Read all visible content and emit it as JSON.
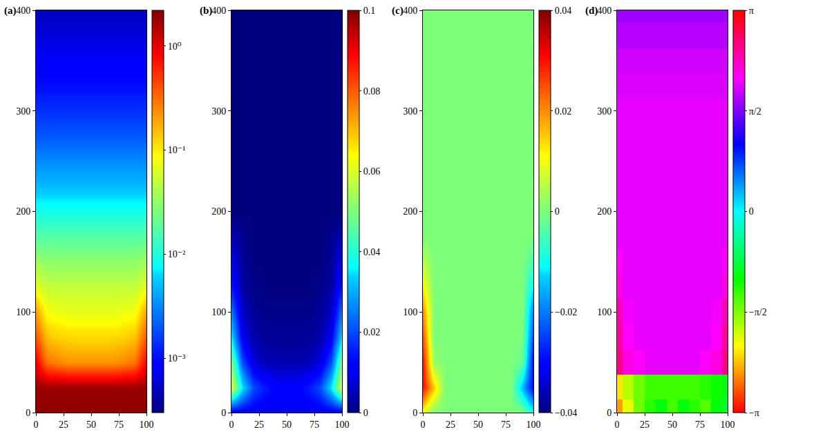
{
  "chart_data": [
    {
      "type": "heatmap",
      "title": "(a)",
      "color": "jet",
      "x": [
        0,
        10,
        20,
        30,
        40,
        50,
        60,
        70,
        80,
        90,
        100
      ],
      "y": [
        0,
        25,
        50,
        75,
        100,
        125,
        150,
        175,
        200,
        225,
        250,
        275,
        300,
        325,
        350,
        375,
        400
      ],
      "z": [
        [
          2.0,
          2.0,
          2.0,
          2.0,
          2.0,
          2.0,
          2.0,
          2.0,
          2.0,
          2.0,
          2.0
        ],
        [
          1.8,
          1.8,
          1.8,
          1.8,
          1.8,
          1.8,
          1.8,
          1.8,
          1.8,
          1.8,
          1.8
        ],
        [
          0.9,
          0.3,
          0.25,
          0.22,
          0.22,
          0.22,
          0.22,
          0.22,
          0.25,
          0.3,
          0.9
        ],
        [
          0.4,
          0.15,
          0.13,
          0.12,
          0.12,
          0.12,
          0.12,
          0.12,
          0.13,
          0.15,
          0.4
        ],
        [
          0.2,
          0.08,
          0.075,
          0.07,
          0.07,
          0.07,
          0.07,
          0.07,
          0.075,
          0.08,
          0.2
        ],
        [
          0.07,
          0.05,
          0.05,
          0.05,
          0.05,
          0.05,
          0.05,
          0.05,
          0.05,
          0.05,
          0.07
        ],
        [
          0.035,
          0.03,
          0.03,
          0.03,
          0.03,
          0.03,
          0.03,
          0.03,
          0.03,
          0.03,
          0.035
        ],
        [
          0.017,
          0.017,
          0.017,
          0.017,
          0.017,
          0.017,
          0.017,
          0.017,
          0.017,
          0.017,
          0.017
        ],
        [
          0.009,
          0.009,
          0.009,
          0.009,
          0.009,
          0.009,
          0.009,
          0.009,
          0.009,
          0.009,
          0.009
        ],
        [
          0.005,
          0.005,
          0.005,
          0.005,
          0.005,
          0.005,
          0.005,
          0.005,
          0.005,
          0.005,
          0.005
        ],
        [
          0.0032,
          0.0032,
          0.0032,
          0.0032,
          0.0032,
          0.0032,
          0.0032,
          0.0032,
          0.0032,
          0.0032,
          0.0032
        ],
        [
          0.002,
          0.002,
          0.002,
          0.002,
          0.002,
          0.002,
          0.002,
          0.002,
          0.002,
          0.002,
          0.002
        ],
        [
          0.0014,
          0.0014,
          0.0014,
          0.0014,
          0.0014,
          0.0014,
          0.0014,
          0.0014,
          0.0014,
          0.0014,
          0.0014
        ],
        [
          0.001,
          0.001,
          0.001,
          0.001,
          0.001,
          0.001,
          0.001,
          0.001,
          0.001,
          0.001,
          0.001
        ],
        [
          0.0008,
          0.0008,
          0.0008,
          0.0008,
          0.0008,
          0.0008,
          0.0008,
          0.0008,
          0.0008,
          0.0008,
          0.0008
        ],
        [
          0.0006,
          0.0006,
          0.0006,
          0.0006,
          0.0006,
          0.0006,
          0.0006,
          0.0006,
          0.0006,
          0.0006,
          0.0006
        ],
        [
          0.0005,
          0.0005,
          0.0005,
          0.0005,
          0.0005,
          0.0005,
          0.0005,
          0.0005,
          0.0005,
          0.0005,
          0.0005
        ]
      ],
      "xlim": [
        0,
        100
      ],
      "ylim": [
        0,
        400
      ],
      "xticks": [
        0,
        25,
        50,
        75,
        100
      ],
      "yticks": [
        0,
        100,
        200,
        300,
        400
      ],
      "colorbar": {
        "range": [
          0.0003,
          2.2
        ],
        "log": true,
        "ticks": [
          {
            "value": 1,
            "label": "10⁰"
          },
          {
            "value": 0.1,
            "label": "10⁻¹"
          },
          {
            "value": 0.01,
            "label": "10⁻²"
          },
          {
            "value": 0.001,
            "label": "10⁻³"
          }
        ]
      }
    },
    {
      "type": "heatmap",
      "title": "(b)",
      "color": "jet",
      "x": [
        0,
        10,
        20,
        30,
        40,
        50,
        60,
        70,
        80,
        90,
        100
      ],
      "y": [
        0,
        25,
        50,
        75,
        100,
        125,
        150,
        175,
        200,
        225,
        250,
        275,
        300,
        325,
        350,
        375,
        400
      ],
      "z": [
        [
          0.01,
          0.01,
          0.01,
          0.01,
          0.01,
          0.01,
          0.01,
          0.01,
          0.01,
          0.01,
          0.01
        ],
        [
          0.06,
          0.035,
          0.02,
          0.015,
          0.012,
          0.012,
          0.012,
          0.015,
          0.02,
          0.035,
          0.06
        ],
        [
          0.05,
          0.02,
          0.008,
          0.005,
          0.004,
          0.004,
          0.004,
          0.005,
          0.008,
          0.02,
          0.05
        ],
        [
          0.035,
          0.01,
          0.004,
          0.002,
          0.002,
          0.002,
          0.002,
          0.002,
          0.004,
          0.01,
          0.035
        ],
        [
          0.025,
          0.006,
          0.002,
          0.001,
          0.001,
          0.001,
          0.001,
          0.001,
          0.002,
          0.006,
          0.025
        ],
        [
          0.015,
          0.003,
          0.001,
          0,
          0,
          0,
          0,
          0,
          0.001,
          0.003,
          0.015
        ],
        [
          0.01,
          0.002,
          0,
          0,
          0,
          0,
          0,
          0,
          0,
          0.002,
          0.01
        ],
        [
          0.005,
          0.001,
          0,
          0,
          0,
          0,
          0,
          0,
          0,
          0.001,
          0.005
        ],
        [
          0,
          0,
          0,
          0,
          0,
          0,
          0,
          0,
          0,
          0,
          0
        ],
        [
          0,
          0,
          0,
          0,
          0,
          0,
          0,
          0,
          0,
          0,
          0
        ],
        [
          0,
          0,
          0,
          0,
          0,
          0,
          0,
          0,
          0,
          0,
          0
        ],
        [
          0,
          0,
          0,
          0,
          0,
          0,
          0,
          0,
          0,
          0,
          0
        ],
        [
          0,
          0,
          0,
          0,
          0,
          0,
          0,
          0,
          0,
          0,
          0
        ],
        [
          0,
          0,
          0,
          0,
          0,
          0,
          0,
          0,
          0,
          0,
          0
        ],
        [
          0,
          0,
          0,
          0,
          0,
          0,
          0,
          0,
          0,
          0,
          0
        ],
        [
          0,
          0,
          0,
          0,
          0,
          0,
          0,
          0,
          0,
          0,
          0
        ],
        [
          0,
          0,
          0,
          0,
          0,
          0,
          0,
          0,
          0,
          0,
          0
        ]
      ],
      "xlim": [
        0,
        100
      ],
      "ylim": [
        0,
        400
      ],
      "xticks": [
        0,
        25,
        50,
        75,
        100
      ],
      "yticks": [
        0,
        100,
        200,
        300,
        400
      ],
      "colorbar": {
        "range": [
          0,
          0.1
        ],
        "ticks": [
          0,
          0.02,
          0.04,
          0.06,
          0.08,
          0.1
        ]
      }
    },
    {
      "type": "heatmap",
      "title": "(c)",
      "color": "jet",
      "x": [
        0,
        10,
        20,
        30,
        40,
        50,
        60,
        70,
        80,
        90,
        100
      ],
      "y": [
        0,
        25,
        50,
        75,
        100,
        125,
        150,
        175,
        200,
        225,
        250,
        275,
        300,
        325,
        350,
        375,
        400
      ],
      "z": [
        [
          0.01,
          0,
          0,
          0,
          0,
          0,
          0,
          0,
          0,
          0,
          -0.01
        ],
        [
          0.03,
          0.015,
          0,
          0,
          0,
          0,
          0,
          0,
          0,
          -0.015,
          -0.03
        ],
        [
          0.03,
          0.002,
          0,
          0,
          0,
          0,
          0,
          0,
          0,
          -0.002,
          -0.03
        ],
        [
          0.025,
          0,
          0,
          0,
          0,
          0,
          0,
          0,
          0,
          0,
          -0.025
        ],
        [
          0.02,
          0,
          0,
          0,
          0,
          0,
          0,
          0,
          0,
          0,
          -0.02
        ],
        [
          0.012,
          0,
          0,
          0,
          0,
          0,
          0,
          0,
          0,
          0,
          -0.012
        ],
        [
          0.005,
          0,
          0,
          0,
          0,
          0,
          0,
          0,
          0,
          0,
          -0.005
        ],
        [
          0,
          0,
          0,
          0,
          0,
          0,
          0,
          0,
          0,
          0,
          0
        ],
        [
          0,
          0,
          0,
          0,
          0,
          0,
          0,
          0,
          0,
          0,
          0
        ],
        [
          0,
          0,
          0,
          0,
          0,
          0,
          0,
          0,
          0,
          0,
          0
        ],
        [
          0,
          0,
          0,
          0,
          0,
          0,
          0,
          0,
          0,
          0,
          0
        ],
        [
          0,
          0,
          0,
          0,
          0,
          0,
          0,
          0,
          0,
          0,
          0
        ],
        [
          0,
          0,
          0,
          0,
          0,
          0,
          0,
          0,
          0,
          0,
          0
        ],
        [
          0,
          0,
          0,
          0,
          0,
          0,
          0,
          0,
          0,
          0,
          0
        ],
        [
          0,
          0,
          0,
          0,
          0,
          0,
          0,
          0,
          0,
          0,
          0
        ],
        [
          0,
          0,
          0,
          0,
          0,
          0,
          0,
          0,
          0,
          0,
          0
        ],
        [
          0,
          0,
          0,
          0,
          0,
          0,
          0,
          0,
          0,
          0,
          0
        ]
      ],
      "xlim": [
        0,
        100
      ],
      "ylim": [
        0,
        400
      ],
      "xticks": [
        0,
        25,
        50,
        75,
        100
      ],
      "yticks": [
        0,
        100,
        200,
        300,
        400
      ],
      "colorbar": {
        "range": [
          -0.04,
          0.04
        ],
        "ticks": [
          -0.04,
          -0.02,
          0,
          0.02,
          0.04
        ]
      }
    },
    {
      "type": "heatmap",
      "title": "(d)",
      "color": "hsv",
      "x": [
        0,
        10,
        20,
        30,
        40,
        50,
        60,
        70,
        80,
        90,
        100
      ],
      "y": [
        0,
        25,
        50,
        75,
        100,
        125,
        150,
        175,
        200,
        225,
        250,
        275,
        300,
        325,
        350,
        375,
        400
      ],
      "z": [
        [
          -2.5,
          -2.0,
          -1.5,
          -1.2,
          -1.0,
          -1.3,
          -1.0,
          -1.2,
          -1.4,
          -1.0,
          -0.9
        ],
        [
          -2.2,
          -1.8,
          -1.5,
          -1.3,
          -1.3,
          -1.3,
          -1.3,
          -1.3,
          -1.2,
          -1.1,
          -1.0
        ],
        [
          2.6,
          2.2,
          2.1,
          2.0,
          2.0,
          2.0,
          2.0,
          2.0,
          2.1,
          2.2,
          2.6
        ],
        [
          2.5,
          2.1,
          2.0,
          2.0,
          2.0,
          2.0,
          2.0,
          2.0,
          2.0,
          2.1,
          2.5
        ],
        [
          2.4,
          2.05,
          2.0,
          2.0,
          2.0,
          2.0,
          2.0,
          2.0,
          2.0,
          2.05,
          2.4
        ],
        [
          2.2,
          2.0,
          2.0,
          2.0,
          2.0,
          2.0,
          2.0,
          2.0,
          2.0,
          2.0,
          2.2
        ],
        [
          2.1,
          2.0,
          2.0,
          2.0,
          2.0,
          2.0,
          2.0,
          2.0,
          2.0,
          2.0,
          2.1
        ],
        [
          2.0,
          2.0,
          2.0,
          2.0,
          2.0,
          2.0,
          2.0,
          2.0,
          2.0,
          2.0,
          2.0
        ],
        [
          2.0,
          2.0,
          2.0,
          2.0,
          2.0,
          2.0,
          2.0,
          2.0,
          2.0,
          2.0,
          2.0
        ],
        [
          2.0,
          2.0,
          2.0,
          2.0,
          2.0,
          2.0,
          2.0,
          2.0,
          2.0,
          2.0,
          2.0
        ],
        [
          2.0,
          2.0,
          2.0,
          2.0,
          2.0,
          2.0,
          2.0,
          2.0,
          2.0,
          2.0,
          2.0
        ],
        [
          2.0,
          2.0,
          2.0,
          2.0,
          2.0,
          2.0,
          2.0,
          2.0,
          2.0,
          2.0,
          2.0
        ],
        [
          2.0,
          2.0,
          2.0,
          2.0,
          2.0,
          2.0,
          2.0,
          2.0,
          2.0,
          2.0,
          2.0
        ],
        [
          1.95,
          1.95,
          1.95,
          1.95,
          1.95,
          1.95,
          1.95,
          1.95,
          1.95,
          1.95,
          1.95
        ],
        [
          1.9,
          1.9,
          1.9,
          1.9,
          1.9,
          1.9,
          1.9,
          1.9,
          1.9,
          1.9,
          1.9
        ],
        [
          1.8,
          1.8,
          1.8,
          1.8,
          1.8,
          1.8,
          1.8,
          1.8,
          1.8,
          1.8,
          1.8
        ],
        [
          1.7,
          1.7,
          1.7,
          1.7,
          1.7,
          1.7,
          1.7,
          1.7,
          1.7,
          1.7,
          1.7
        ]
      ],
      "xlim": [
        0,
        100
      ],
      "ylim": [
        0,
        400
      ],
      "xticks": [
        0,
        25,
        50,
        75,
        100
      ],
      "yticks": [
        0,
        100,
        200,
        300,
        400
      ],
      "colorbar": {
        "range": [
          -3.14159,
          3.14159
        ],
        "ticks": [
          {
            "value": -3.14159,
            "label": "−π"
          },
          {
            "value": -1.5708,
            "label": "−π/2"
          },
          {
            "value": 0,
            "label": "0"
          },
          {
            "value": 1.5708,
            "label": "π/2"
          },
          {
            "value": 3.14159,
            "label": "π"
          }
        ]
      }
    }
  ]
}
